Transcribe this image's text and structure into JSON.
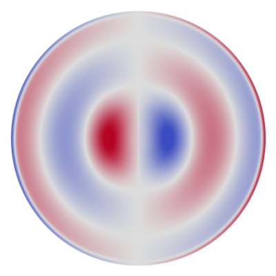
{
  "visualization": {
    "kind": "scalar field on a disk",
    "colormap": {
      "name": "coolwarm",
      "negative": "#3b4cc0",
      "neutral": "#dddddd",
      "positive": "#b40426"
    },
    "background": "#ffffff"
  }
}
